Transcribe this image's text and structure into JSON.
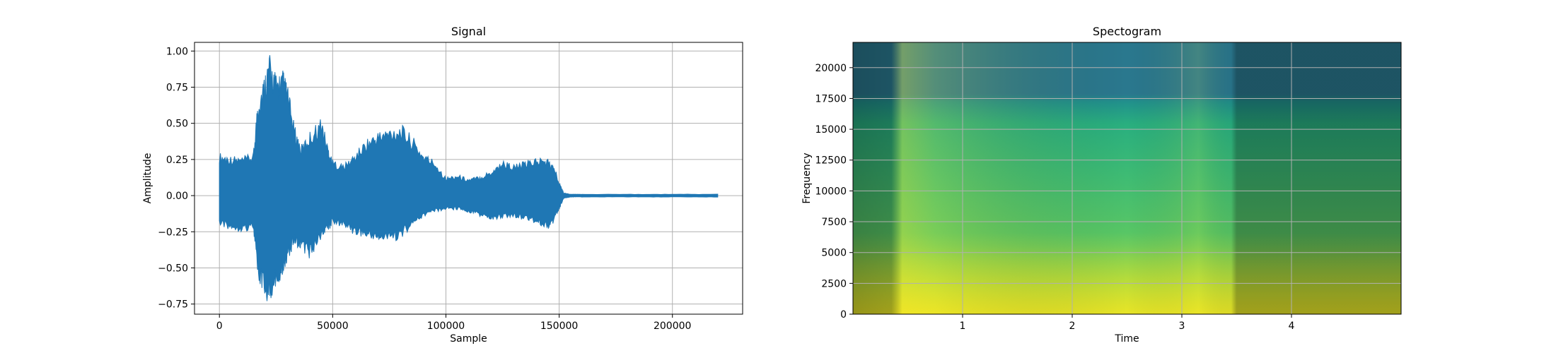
{
  "chart_data": [
    {
      "type": "line",
      "title": "Signal",
      "xlabel": "Sample",
      "ylabel": "Amplitude",
      "xlim": [
        -11000,
        231000
      ],
      "ylim": [
        -0.82,
        1.06
      ],
      "grid": true,
      "x_ticks": [
        0,
        50000,
        100000,
        150000,
        200000
      ],
      "x_tick_labels": [
        "0",
        "50000",
        "100000",
        "150000",
        "200000"
      ],
      "y_ticks": [
        -0.75,
        -0.5,
        -0.25,
        0.0,
        0.25,
        0.5,
        0.75,
        1.0
      ],
      "y_tick_labels": [
        "−0.75",
        "−0.50",
        "−0.25",
        "0.00",
        "0.25",
        "0.50",
        "0.75",
        "1.00"
      ],
      "color": "#1f77b4",
      "series": [
        {
          "x": [
            0,
            5000,
            10000,
            15000,
            17000,
            20000,
            22000,
            25000,
            28000,
            30000,
            33000,
            36000,
            40000,
            45000,
            48000,
            50000,
            55000,
            60000,
            65000,
            70000,
            75000,
            80000,
            85000,
            90000,
            95000,
            100000,
            105000,
            110000,
            115000,
            120000,
            125000,
            130000,
            135000,
            140000,
            145000,
            148000,
            150000,
            152000,
            155000,
            160000,
            180000,
            200000,
            220000
          ],
          "upper": [
            0.3,
            0.28,
            0.27,
            0.3,
            0.7,
            0.85,
            0.99,
            0.85,
            0.88,
            0.78,
            0.5,
            0.35,
            0.45,
            0.55,
            0.35,
            0.25,
            0.22,
            0.3,
            0.4,
            0.45,
            0.48,
            0.5,
            0.42,
            0.3,
            0.25,
            0.13,
            0.15,
            0.12,
            0.14,
            0.18,
            0.25,
            0.22,
            0.24,
            0.27,
            0.26,
            0.2,
            0.1,
            0.02,
            0.01,
            0.01,
            0.01,
            0.01,
            0.01
          ],
          "lower": [
            -0.22,
            -0.24,
            -0.25,
            -0.24,
            -0.6,
            -0.72,
            -0.75,
            -0.65,
            -0.55,
            -0.45,
            -0.35,
            -0.38,
            -0.45,
            -0.3,
            -0.25,
            -0.2,
            -0.22,
            -0.28,
            -0.3,
            -0.32,
            -0.33,
            -0.3,
            -0.22,
            -0.15,
            -0.12,
            -0.1,
            -0.1,
            -0.12,
            -0.15,
            -0.18,
            -0.16,
            -0.15,
            -0.17,
            -0.2,
            -0.24,
            -0.18,
            -0.1,
            -0.02,
            -0.01,
            -0.01,
            -0.01,
            -0.01,
            -0.01
          ]
        }
      ]
    },
    {
      "type": "heatmap",
      "title": "Spectogram",
      "xlabel": "Time",
      "ylabel": "Frequency",
      "xlim": [
        0.0,
        5.0
      ],
      "ylim": [
        0,
        22050
      ],
      "grid": true,
      "x_ticks": [
        1,
        2,
        3,
        4
      ],
      "x_tick_labels": [
        "1",
        "2",
        "3",
        "4"
      ],
      "y_ticks": [
        0,
        2500,
        5000,
        7500,
        10000,
        12500,
        15000,
        17500,
        20000
      ],
      "y_tick_labels": [
        "0",
        "2500",
        "5000",
        "7500",
        "10000",
        "12500",
        "15000",
        "17500",
        "20000"
      ],
      "colormap": "viridis",
      "background_color": "#2a788e"
    }
  ]
}
